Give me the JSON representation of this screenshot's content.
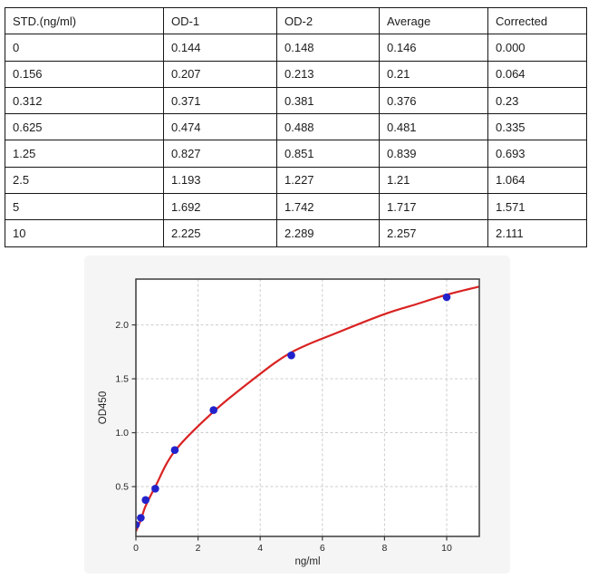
{
  "table": {
    "headers": [
      "STD.(ng/ml)",
      "OD-1",
      "OD-2",
      "Average",
      "Corrected"
    ],
    "rows": [
      [
        "0",
        "0.144",
        "0.148",
        "0.146",
        "0.000"
      ],
      [
        "0.156",
        "0.207",
        "0.213",
        "0.21",
        "0.064"
      ],
      [
        "0.312",
        "0.371",
        "0.381",
        "0.376",
        "0.23"
      ],
      [
        "0.625",
        "0.474",
        "0.488",
        "0.481",
        "0.335"
      ],
      [
        "1.25",
        "0.827",
        "0.851",
        "0.839",
        "0.693"
      ],
      [
        "2.5",
        "1.193",
        "1.227",
        "1.21",
        "1.064"
      ],
      [
        "5",
        "1.692",
        "1.742",
        "1.717",
        "1.571"
      ],
      [
        "10",
        "2.225",
        "2.289",
        "2.257",
        "2.111"
      ]
    ]
  },
  "chart_data": {
    "type": "scatter",
    "title": "",
    "xlabel": "ng/ml",
    "ylabel": "OD450",
    "x": [
      0,
      0.156,
      0.312,
      0.625,
      1.25,
      2.5,
      5,
      10
    ],
    "y": [
      0.146,
      0.21,
      0.376,
      0.481,
      0.839,
      1.21,
      1.717,
      2.257
    ],
    "fit_curve_points": [
      [
        0,
        0.085
      ],
      [
        0.156,
        0.19
      ],
      [
        0.312,
        0.32
      ],
      [
        0.625,
        0.5
      ],
      [
        1.25,
        0.83
      ],
      [
        2.5,
        1.195
      ],
      [
        3.75,
        1.49
      ],
      [
        5,
        1.745
      ],
      [
        6.5,
        1.93
      ],
      [
        8,
        2.1
      ],
      [
        9,
        2.19
      ],
      [
        10,
        2.28
      ],
      [
        11.05,
        2.355
      ]
    ],
    "xticks": [
      "0",
      "2",
      "4",
      "6",
      "8",
      "10"
    ],
    "xtick_values": [
      0,
      2,
      4,
      6,
      8,
      10
    ],
    "yticks": [
      "0.5",
      "1.0",
      "1.5",
      "2.0"
    ],
    "ytick_values": [
      0.5,
      1.0,
      1.5,
      2.0
    ],
    "xlim": [
      0,
      11.05
    ],
    "ylim": [
      0.038,
      2.425
    ],
    "grid": true,
    "legend_position": "none",
    "colors": {
      "curve": "#d92222",
      "points": "#2222cc",
      "grid": "#cccccc",
      "axis": "#3c3c3c",
      "plot_bg": "#ffffff",
      "card_bg": "#f5f5f5"
    }
  }
}
